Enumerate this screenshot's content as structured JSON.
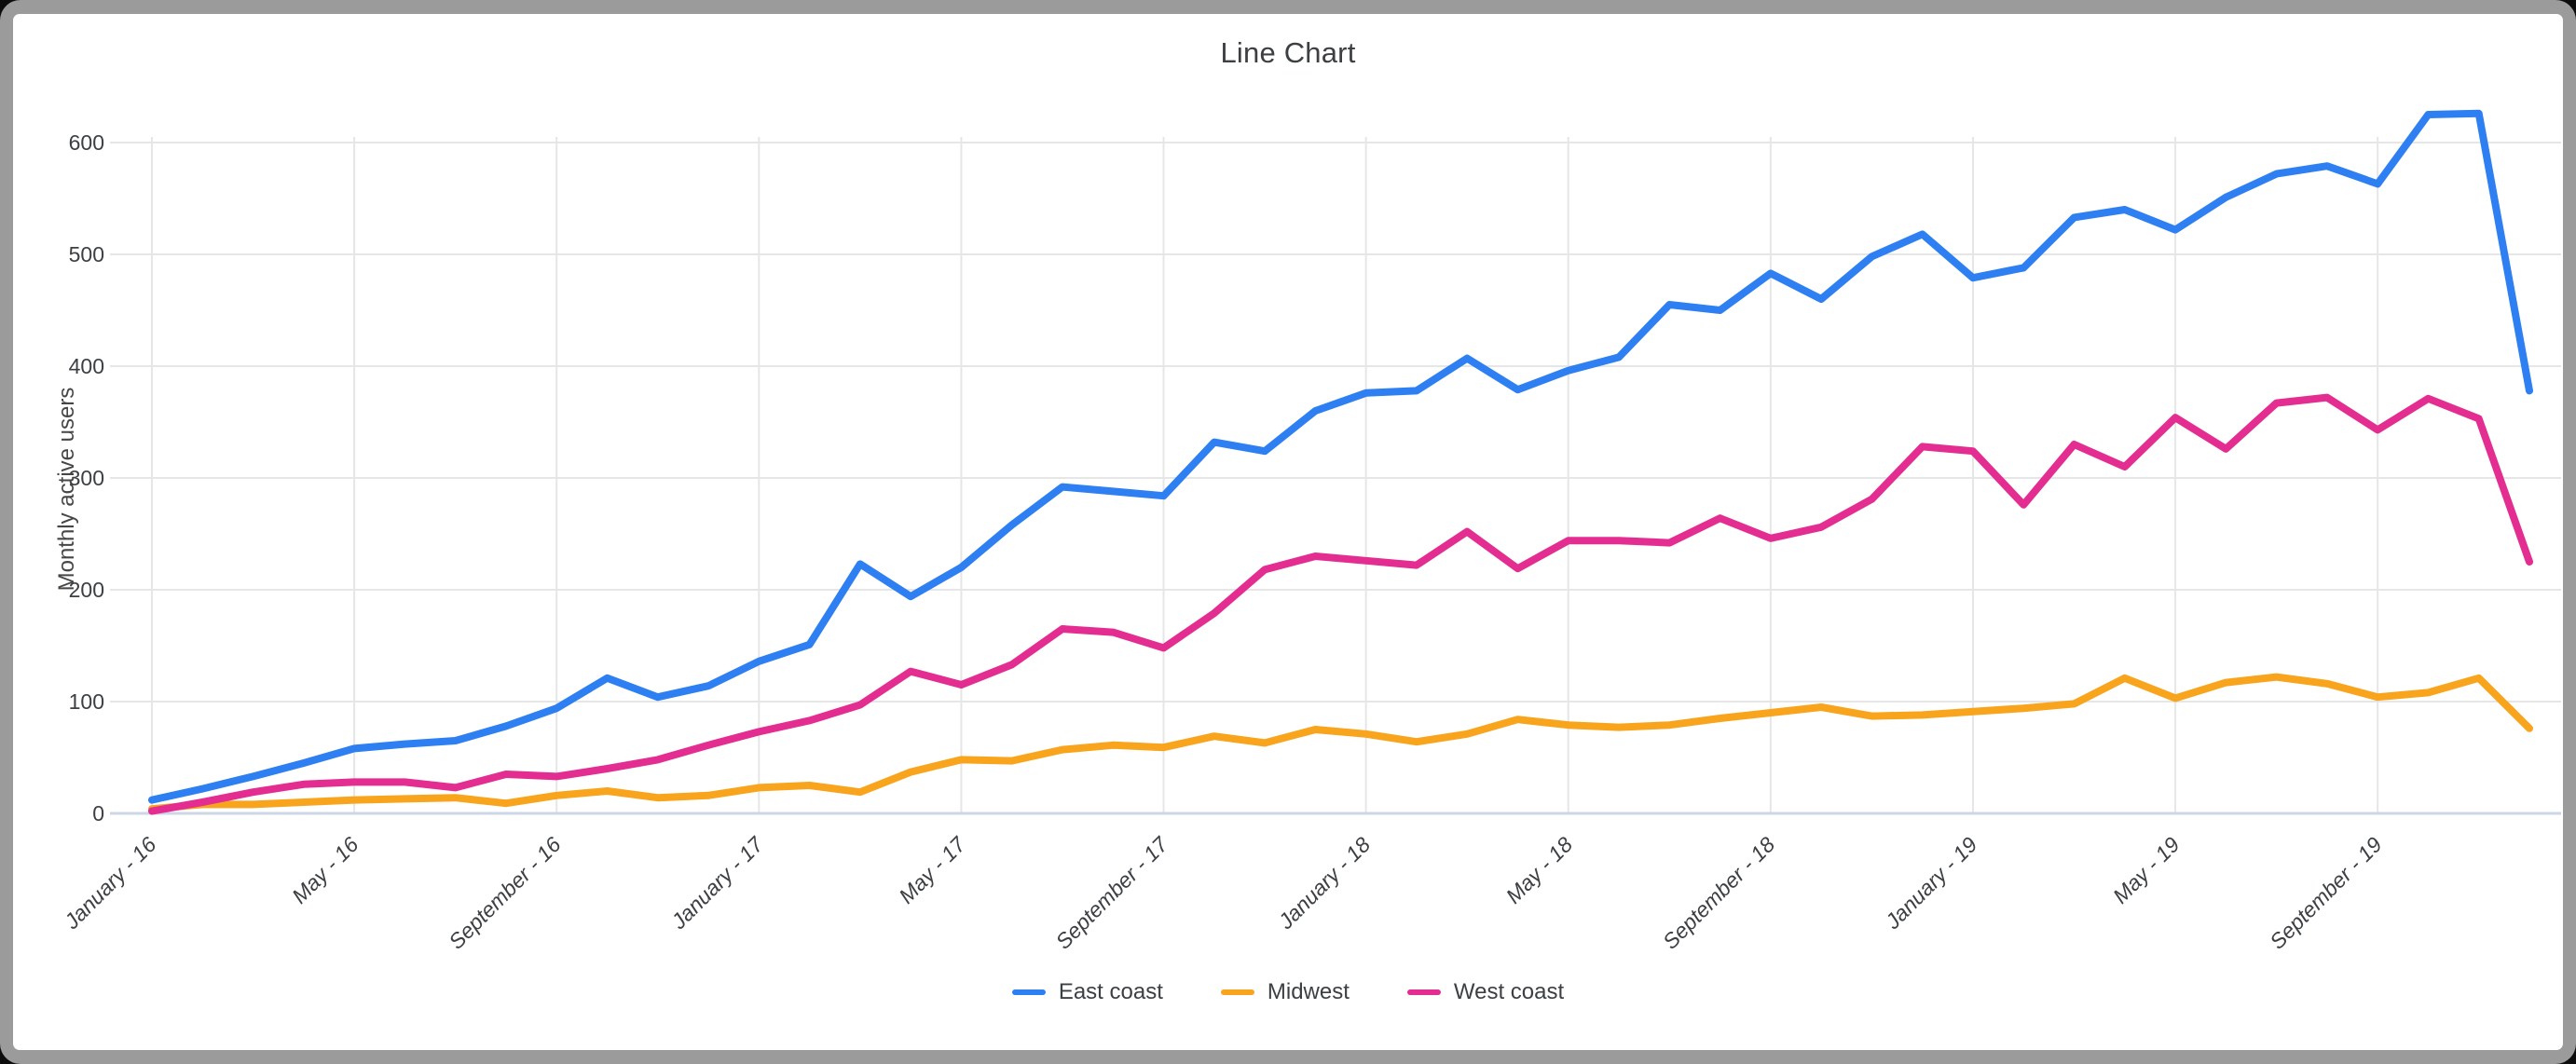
{
  "window": {
    "frame_color": "#9b9b9b",
    "card_color": "#ffffff"
  },
  "chart_data": {
    "type": "line",
    "title": "Line Chart",
    "xlabel": "",
    "ylabel": "Monthly active users",
    "ylim": [
      0,
      600
    ],
    "y_ticks": [
      0,
      100,
      200,
      300,
      400,
      500,
      600
    ],
    "grid": true,
    "legend_position": "bottom",
    "x_tick_interval": 4,
    "x_tick_labels": [
      "January - 16",
      "May - 16",
      "September - 16",
      "January - 17",
      "May - 17",
      "September - 17",
      "January - 18",
      "May - 18",
      "September - 18",
      "January - 19",
      "May - 19",
      "September - 19"
    ],
    "months": [
      "2016-01",
      "2016-02",
      "2016-03",
      "2016-04",
      "2016-05",
      "2016-06",
      "2016-07",
      "2016-08",
      "2016-09",
      "2016-10",
      "2016-11",
      "2016-12",
      "2017-01",
      "2017-02",
      "2017-03",
      "2017-04",
      "2017-05",
      "2017-06",
      "2017-07",
      "2017-08",
      "2017-09",
      "2017-10",
      "2017-11",
      "2017-12",
      "2018-01",
      "2018-02",
      "2018-03",
      "2018-04",
      "2018-05",
      "2018-06",
      "2018-07",
      "2018-08",
      "2018-09",
      "2018-10",
      "2018-11",
      "2018-12",
      "2019-01",
      "2019-02",
      "2019-03",
      "2019-04",
      "2019-05",
      "2019-06",
      "2019-07",
      "2019-08",
      "2019-09",
      "2019-10",
      "2019-11",
      "2019-12"
    ],
    "series": [
      {
        "name": "East coast",
        "color": "#2d7ff2",
        "values": [
          12,
          22,
          33,
          45,
          58,
          62,
          65,
          78,
          94,
          121,
          104,
          114,
          136,
          151,
          223,
          194,
          220,
          258,
          292,
          288,
          284,
          332,
          324,
          360,
          376,
          378,
          407,
          379,
          396,
          408,
          455,
          450,
          483,
          460,
          498,
          518,
          479,
          488,
          533,
          540,
          522,
          551,
          572,
          579,
          563,
          625,
          626,
          378
        ]
      },
      {
        "name": "Midwest",
        "color": "#f8a41d",
        "values": [
          4,
          8,
          8,
          10,
          12,
          13,
          14,
          9,
          16,
          20,
          14,
          16,
          23,
          25,
          19,
          37,
          48,
          47,
          57,
          61,
          59,
          69,
          63,
          75,
          71,
          64,
          71,
          84,
          79,
          77,
          79,
          85,
          90,
          95,
          87,
          88,
          91,
          94,
          98,
          121,
          103,
          117,
          122,
          116,
          104,
          108,
          121,
          76
        ]
      },
      {
        "name": "West coast",
        "color": "#e32d91",
        "values": [
          2,
          10,
          19,
          26,
          28,
          28,
          23,
          35,
          33,
          40,
          48,
          61,
          73,
          83,
          97,
          127,
          115,
          133,
          165,
          162,
          148,
          179,
          218,
          230,
          226,
          222,
          252,
          219,
          244,
          244,
          242,
          264,
          246,
          256,
          281,
          328,
          324,
          276,
          330,
          310,
          354,
          326,
          367,
          372,
          343,
          371,
          353,
          225
        ]
      }
    ],
    "style": {
      "gridline_color": "#e6e6e6",
      "baseline_color": "#ccd6e6",
      "tick_label_color": "#3c4043",
      "title_color": "#3c4043",
      "line_width": 8
    }
  }
}
